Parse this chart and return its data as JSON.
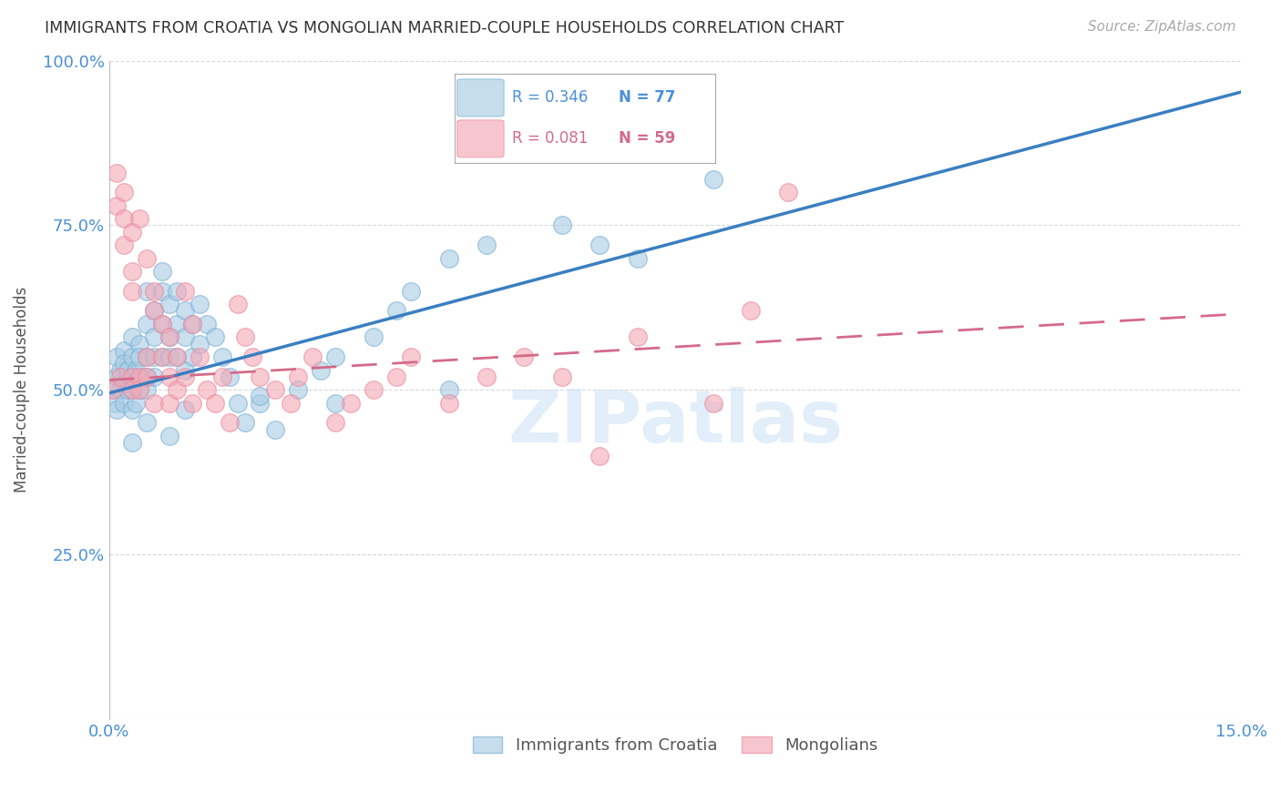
{
  "title": "IMMIGRANTS FROM CROATIA VS MONGOLIAN MARRIED-COUPLE HOUSEHOLDS CORRELATION CHART",
  "source": "Source: ZipAtlas.com",
  "xlabel_blue": "Immigrants from Croatia",
  "xlabel_pink": "Mongolians",
  "ylabel": "Married-couple Households",
  "xlim": [
    0.0,
    0.15
  ],
  "ylim": [
    0.0,
    1.0
  ],
  "blue_R": 0.346,
  "blue_N": 77,
  "pink_R": 0.081,
  "pink_N": 59,
  "blue_color": "#a8cce4",
  "pink_color": "#f4a7b5",
  "blue_line_color": "#3a7fc1",
  "pink_line_color": "#d46a8a",
  "title_color": "#333333",
  "axis_color": "#4a90d9",
  "watermark": "ZIPatlas",
  "blue_intercept": 0.495,
  "blue_slope": 3.05,
  "pink_intercept": 0.515,
  "pink_slope": 0.67,
  "blue_scatter_x": [
    0.0005,
    0.0008,
    0.001,
    0.001,
    0.001,
    0.0015,
    0.0015,
    0.002,
    0.002,
    0.002,
    0.002,
    0.0025,
    0.0025,
    0.003,
    0.003,
    0.003,
    0.003,
    0.003,
    0.0035,
    0.0035,
    0.004,
    0.004,
    0.004,
    0.004,
    0.005,
    0.005,
    0.005,
    0.005,
    0.005,
    0.006,
    0.006,
    0.006,
    0.006,
    0.007,
    0.007,
    0.007,
    0.007,
    0.008,
    0.008,
    0.008,
    0.009,
    0.009,
    0.009,
    0.01,
    0.01,
    0.01,
    0.011,
    0.011,
    0.012,
    0.012,
    0.013,
    0.014,
    0.015,
    0.016,
    0.017,
    0.018,
    0.02,
    0.022,
    0.025,
    0.028,
    0.03,
    0.035,
    0.038,
    0.04,
    0.045,
    0.05,
    0.06,
    0.065,
    0.07,
    0.08,
    0.03,
    0.045,
    0.02,
    0.01,
    0.008,
    0.005,
    0.003
  ],
  "blue_scatter_y": [
    0.5,
    0.48,
    0.52,
    0.55,
    0.47,
    0.53,
    0.5,
    0.56,
    0.51,
    0.48,
    0.54,
    0.5,
    0.53,
    0.47,
    0.52,
    0.55,
    0.58,
    0.5,
    0.53,
    0.48,
    0.52,
    0.57,
    0.5,
    0.55,
    0.6,
    0.55,
    0.52,
    0.65,
    0.5,
    0.58,
    0.62,
    0.55,
    0.52,
    0.65,
    0.6,
    0.55,
    0.68,
    0.63,
    0.58,
    0.55,
    0.65,
    0.6,
    0.55,
    0.62,
    0.58,
    0.53,
    0.6,
    0.55,
    0.63,
    0.57,
    0.6,
    0.58,
    0.55,
    0.52,
    0.48,
    0.45,
    0.48,
    0.44,
    0.5,
    0.53,
    0.55,
    0.58,
    0.62,
    0.65,
    0.7,
    0.72,
    0.75,
    0.72,
    0.7,
    0.82,
    0.48,
    0.5,
    0.49,
    0.47,
    0.43,
    0.45,
    0.42
  ],
  "pink_scatter_x": [
    0.0005,
    0.001,
    0.001,
    0.0015,
    0.002,
    0.002,
    0.002,
    0.003,
    0.003,
    0.003,
    0.003,
    0.003,
    0.004,
    0.004,
    0.004,
    0.005,
    0.005,
    0.005,
    0.006,
    0.006,
    0.006,
    0.007,
    0.007,
    0.008,
    0.008,
    0.008,
    0.009,
    0.009,
    0.01,
    0.01,
    0.011,
    0.011,
    0.012,
    0.013,
    0.014,
    0.015,
    0.016,
    0.017,
    0.018,
    0.019,
    0.02,
    0.022,
    0.024,
    0.025,
    0.027,
    0.03,
    0.032,
    0.035,
    0.038,
    0.04,
    0.045,
    0.05,
    0.055,
    0.06,
    0.065,
    0.07,
    0.08,
    0.085,
    0.09
  ],
  "pink_scatter_y": [
    0.5,
    0.83,
    0.78,
    0.52,
    0.8,
    0.76,
    0.72,
    0.52,
    0.5,
    0.74,
    0.68,
    0.65,
    0.52,
    0.5,
    0.76,
    0.55,
    0.52,
    0.7,
    0.65,
    0.62,
    0.48,
    0.6,
    0.55,
    0.52,
    0.58,
    0.48,
    0.55,
    0.5,
    0.52,
    0.65,
    0.48,
    0.6,
    0.55,
    0.5,
    0.48,
    0.52,
    0.45,
    0.63,
    0.58,
    0.55,
    0.52,
    0.5,
    0.48,
    0.52,
    0.55,
    0.45,
    0.48,
    0.5,
    0.52,
    0.55,
    0.48,
    0.52,
    0.55,
    0.52,
    0.4,
    0.58,
    0.48,
    0.62,
    0.8
  ]
}
